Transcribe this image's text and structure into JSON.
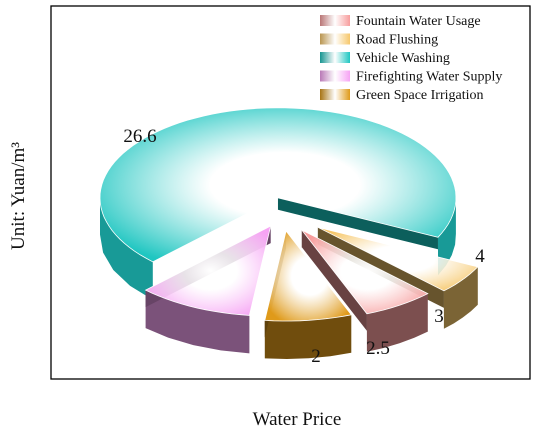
{
  "chart_data": {
    "type": "pie",
    "style": "3d-exploded",
    "xlabel": "Water Price",
    "ylabel": "Unit: Yuan/m³",
    "legend_position": "top-right",
    "slices": [
      {
        "name": "Vehicle Washing",
        "value": 26.6,
        "label": "26.6",
        "color": "#1fc6c1"
      },
      {
        "name": "Road Flushing",
        "value": 2,
        "label": "2",
        "color": "#f6c76a"
      },
      {
        "name": "Fountain Water Usage",
        "value": 2.5,
        "label": "2.5",
        "color": "#f79d9d"
      },
      {
        "name": "Green Space Irrigation",
        "value": 3,
        "label": "3",
        "color": "#df9a1a"
      },
      {
        "name": "Firefighting Water Supply",
        "value": 4,
        "label": "4",
        "color": "#f6a3f4"
      }
    ],
    "legend": [
      {
        "name": "Fountain Water Usage",
        "color": "#f79d9d"
      },
      {
        "name": "Road Flushing",
        "color": "#f6c76a"
      },
      {
        "name": "Vehicle Washing",
        "color": "#1fc6c1"
      },
      {
        "name": "Firefighting Water Supply",
        "color": "#f6a3f4"
      },
      {
        "name": "Green Space Irrigation",
        "color": "#df9a1a"
      }
    ]
  }
}
